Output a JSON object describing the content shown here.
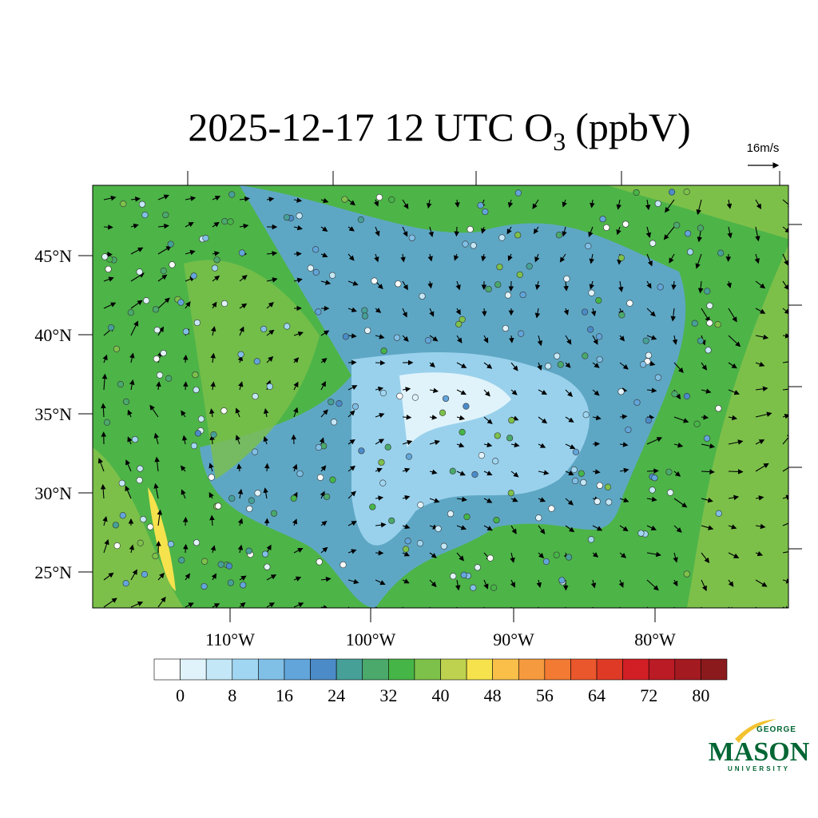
{
  "title": {
    "text": "2025-12-17 12 UTC O",
    "subscript": "3",
    "suffix": "(ppbV)"
  },
  "vector_reference": "16m/s",
  "latitude_labels": [
    "45°N",
    "40°N",
    "35°N",
    "30°N",
    "25°N"
  ],
  "longitude_labels": [
    "110°W",
    "100°W",
    "90°W",
    "80°W"
  ],
  "colorbar": {
    "colors": [
      "#ffffff",
      "#e0f3fb",
      "#c3e7f7",
      "#a0d6f1",
      "#80bfe6",
      "#62a5da",
      "#4b8bc8",
      "#46a098",
      "#4aa96b",
      "#46b547",
      "#7dc14a",
      "#bed24f",
      "#f6e24d",
      "#f9bf49",
      "#f59a3e",
      "#f27a33",
      "#eb572c",
      "#df3a26",
      "#d21f26",
      "#bb1b24",
      "#a31a20",
      "#8a1a1c"
    ],
    "tick_labels": [
      "0",
      "8",
      "16",
      "24",
      "32",
      "40",
      "48",
      "56",
      "64",
      "72",
      "80"
    ]
  },
  "logo": {
    "top": "GEORGE",
    "main": "MASON",
    "bottom": "UNIVERSITY"
  }
}
